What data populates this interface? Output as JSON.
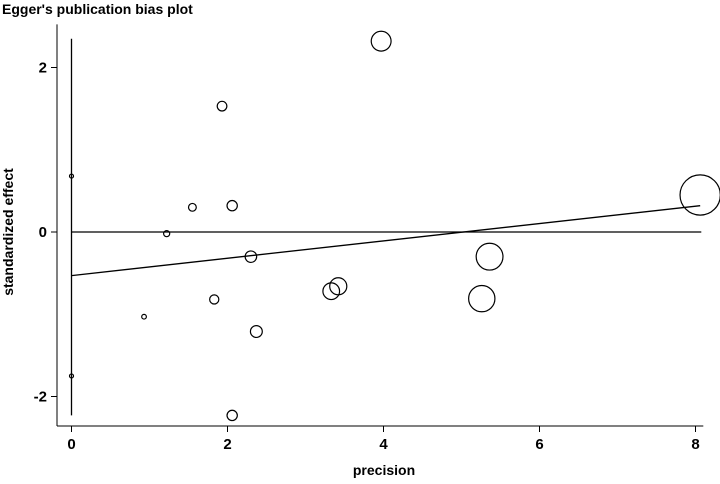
{
  "chart_data": {
    "type": "scatter",
    "title": "Egger's publication bias plot",
    "xlabel": "precision",
    "ylabel": "standardized effect",
    "xlim": [
      0,
      8.1
    ],
    "ylim": [
      -2.4,
      2.5
    ],
    "x_ticks": [
      0,
      2,
      4,
      6,
      8
    ],
    "y_ticks": [
      -2,
      0,
      2
    ],
    "grid": false,
    "legend": "none",
    "points": [
      {
        "x": 0.0,
        "y": 0.68
      },
      {
        "x": 0.0,
        "y": -1.75
      },
      {
        "x": 0.93,
        "y": -1.03
      },
      {
        "x": 1.22,
        "y": -0.02
      },
      {
        "x": 1.55,
        "y": 0.3
      },
      {
        "x": 1.83,
        "y": -0.82
      },
      {
        "x": 1.93,
        "y": 1.53
      },
      {
        "x": 2.06,
        "y": 0.32
      },
      {
        "x": 2.06,
        "y": -2.23
      },
      {
        "x": 2.3,
        "y": -0.3
      },
      {
        "x": 2.37,
        "y": -1.21
      },
      {
        "x": 3.33,
        "y": -0.72
      },
      {
        "x": 3.42,
        "y": -0.66
      },
      {
        "x": 3.97,
        "y": 2.32
      },
      {
        "x": 5.26,
        "y": -0.81
      },
      {
        "x": 5.36,
        "y": -0.3
      },
      {
        "x": 8.06,
        "y": 0.45
      }
    ],
    "regression_line": {
      "x": [
        0,
        8.06
      ],
      "y": [
        -0.53,
        0.32
      ]
    },
    "reference_lines": {
      "y": 0,
      "x": 0,
      "x_line_y_range": [
        -2.23,
        2.35
      ]
    }
  }
}
